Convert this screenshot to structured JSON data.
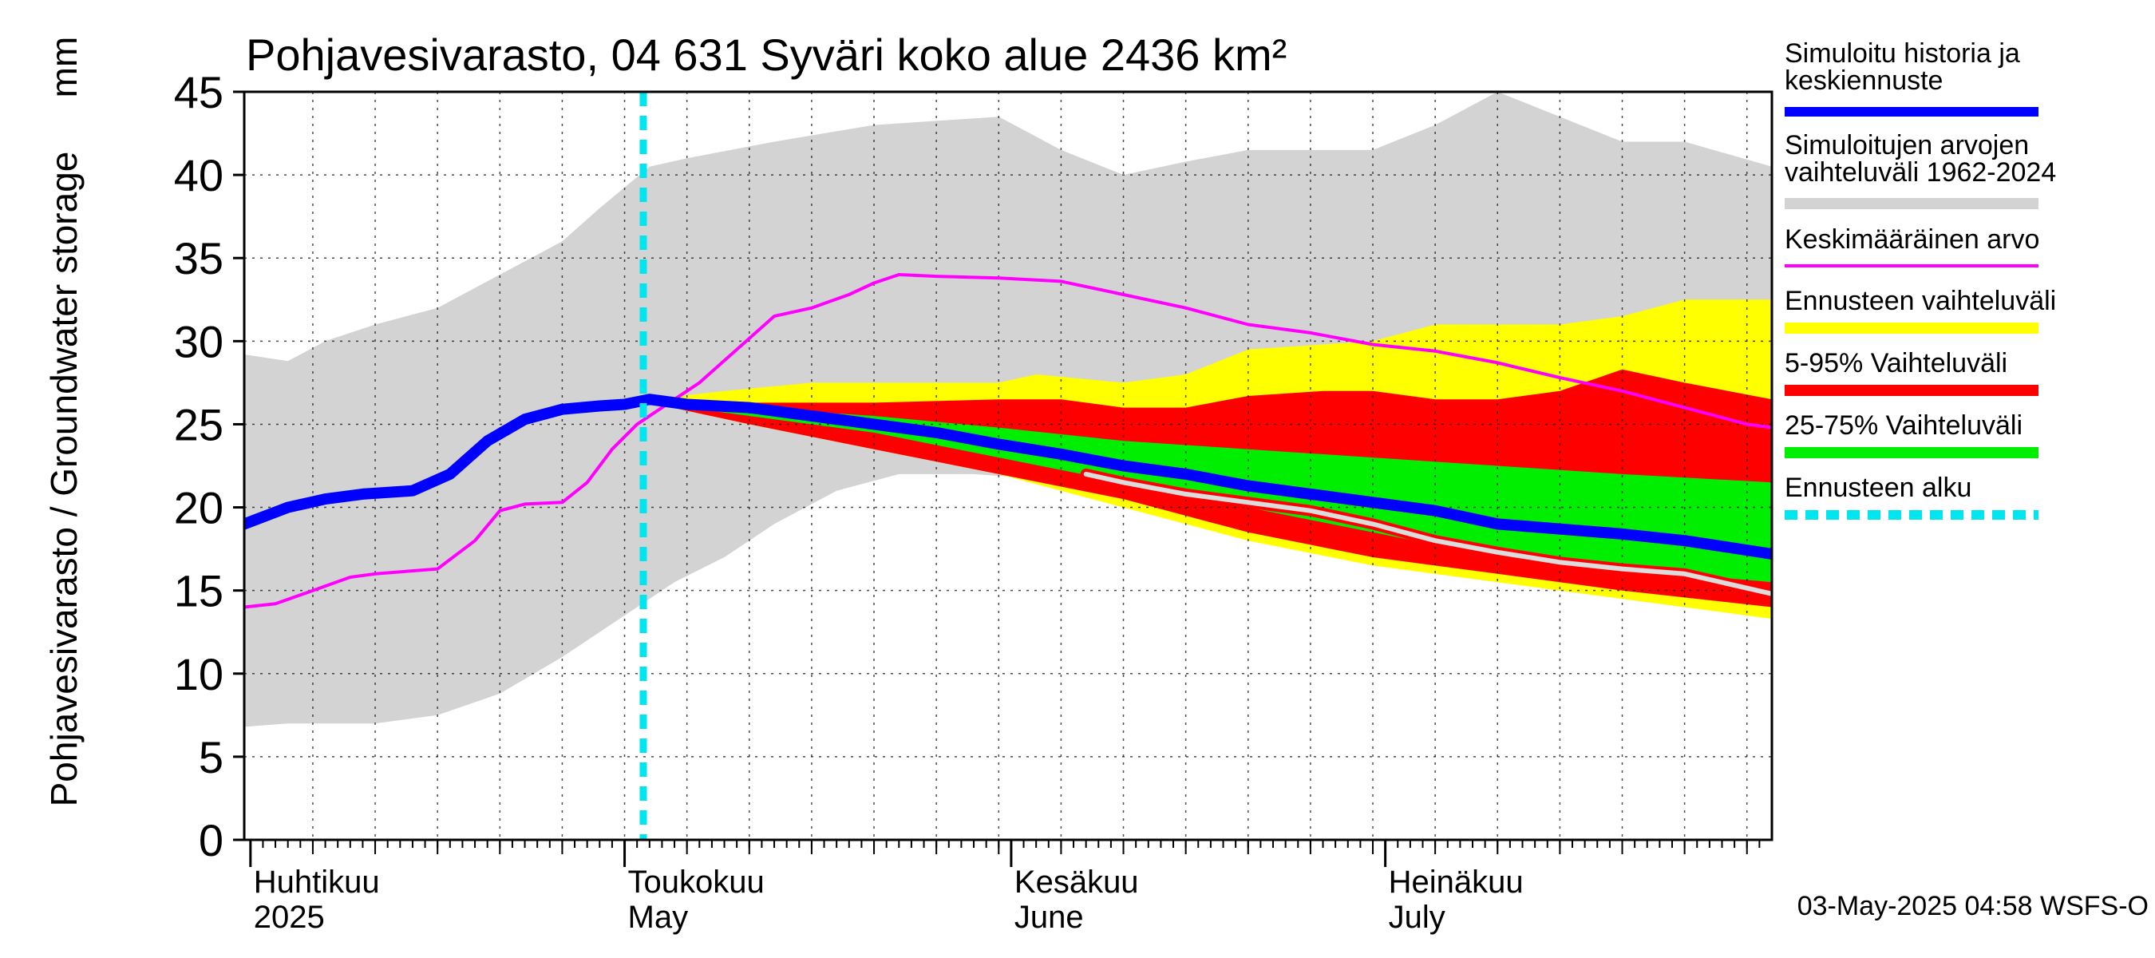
{
  "chart_data": {
    "type": "area",
    "title": "Pohjavesivarasto, 04 631 Syväri koko alue 2436 km²",
    "ylabel": "Pohjavesivarasto / Groundwater storage",
    "yunit": "mm",
    "ylim": [
      0,
      45
    ],
    "yticks": [
      0,
      5,
      10,
      15,
      20,
      25,
      30,
      35,
      40,
      45
    ],
    "xlim": [
      -0.5,
      122
    ],
    "grid": true,
    "month_labels": [
      {
        "x": 0,
        "line1": "Huhtikuu",
        "line2": "2025"
      },
      {
        "x": 30,
        "line1": "Toukokuu",
        "line2": "May"
      },
      {
        "x": 61,
        "line1": "Kesäkuu",
        "line2": "June"
      },
      {
        "x": 91,
        "line1": "Heinäkuu",
        "line2": "July"
      }
    ],
    "forecast_start_x": 31.5,
    "colors": {
      "history_range": "#d3d3d3",
      "forecast_range": "#ffff00",
      "p5_95": "#ff0000",
      "p25_75": "#00ee00",
      "median": "#0000ff",
      "mean": "#ff00ff",
      "forecast_start": "#00e5ee",
      "lowline": "#dcdcdc"
    },
    "series": [
      {
        "key": "hist_max",
        "values": [
          [
            -0.5,
            29.2
          ],
          [
            3,
            28.8
          ],
          [
            6,
            30
          ],
          [
            10,
            31
          ],
          [
            15,
            32
          ],
          [
            20,
            34
          ],
          [
            25,
            36
          ],
          [
            28,
            38
          ],
          [
            32,
            40.5
          ],
          [
            35,
            41
          ],
          [
            42,
            42
          ],
          [
            50,
            43
          ],
          [
            60,
            43.5
          ],
          [
            65,
            41.5
          ],
          [
            70,
            40
          ],
          [
            75,
            40.8
          ],
          [
            80,
            41.5
          ],
          [
            85,
            41.5
          ],
          [
            90,
            41.5
          ],
          [
            95,
            43
          ],
          [
            100,
            45
          ],
          [
            105,
            43.5
          ],
          [
            110,
            42
          ],
          [
            115,
            42
          ],
          [
            122,
            40.5
          ]
        ]
      },
      {
        "key": "hist_min",
        "values": [
          [
            -0.5,
            6.8
          ],
          [
            3,
            7
          ],
          [
            10,
            7
          ],
          [
            15,
            7.5
          ],
          [
            20,
            8.8
          ],
          [
            25,
            11
          ],
          [
            28,
            12.5
          ],
          [
            31,
            14
          ],
          [
            34,
            15.5
          ],
          [
            38,
            17
          ],
          [
            42,
            19
          ],
          [
            47,
            21
          ],
          [
            52,
            22
          ],
          [
            58,
            22
          ],
          [
            64,
            21.7
          ],
          [
            70,
            20
          ],
          [
            75,
            19.5
          ],
          [
            85,
            18
          ],
          [
            95,
            16
          ],
          [
            105,
            15
          ],
          [
            115,
            14
          ],
          [
            122,
            13.5
          ]
        ]
      },
      {
        "key": "fc_max",
        "values": [
          [
            32,
            26.5
          ],
          [
            38,
            27
          ],
          [
            45,
            27.5
          ],
          [
            55,
            27.5
          ],
          [
            60,
            27.5
          ],
          [
            63,
            28
          ],
          [
            70,
            27.5
          ],
          [
            75,
            28
          ],
          [
            80,
            29.5
          ],
          [
            90,
            30
          ],
          [
            95,
            31
          ],
          [
            100,
            31
          ],
          [
            105,
            31
          ],
          [
            110,
            31.5
          ],
          [
            115,
            32.5
          ],
          [
            122,
            32.5
          ]
        ]
      },
      {
        "key": "fc_min",
        "values": [
          [
            32,
            26.3
          ],
          [
            40,
            25
          ],
          [
            50,
            23.5
          ],
          [
            60,
            22
          ],
          [
            70,
            20
          ],
          [
            80,
            18
          ],
          [
            90,
            16.5
          ],
          [
            100,
            15.5
          ],
          [
            110,
            14.5
          ],
          [
            122,
            13.3
          ]
        ]
      },
      {
        "key": "p95",
        "values": [
          [
            32,
            26.5
          ],
          [
            40,
            26.3
          ],
          [
            50,
            26.3
          ],
          [
            60,
            26.5
          ],
          [
            65,
            26.5
          ],
          [
            70,
            26
          ],
          [
            75,
            26
          ],
          [
            80,
            26.7
          ],
          [
            86,
            27
          ],
          [
            90,
            27
          ],
          [
            95,
            26.5
          ],
          [
            100,
            26.5
          ],
          [
            105,
            27
          ],
          [
            110,
            28.3
          ],
          [
            115,
            27.5
          ],
          [
            122,
            26.5
          ]
        ]
      },
      {
        "key": "p5",
        "values": [
          [
            32,
            26.3
          ],
          [
            40,
            25
          ],
          [
            50,
            23.5
          ],
          [
            60,
            22
          ],
          [
            70,
            20.5
          ],
          [
            80,
            18.5
          ],
          [
            90,
            17
          ],
          [
            100,
            16
          ],
          [
            110,
            15
          ],
          [
            122,
            14
          ]
        ]
      },
      {
        "key": "p75",
        "values": [
          [
            32,
            26.5
          ],
          [
            40,
            26
          ],
          [
            50,
            25.5
          ],
          [
            60,
            24.8
          ],
          [
            70,
            24
          ],
          [
            80,
            23.5
          ],
          [
            90,
            23
          ],
          [
            100,
            22.5
          ],
          [
            110,
            22
          ],
          [
            122,
            21.5
          ]
        ]
      },
      {
        "key": "p25",
        "values": [
          [
            32,
            26.3
          ],
          [
            40,
            25.5
          ],
          [
            50,
            24.5
          ],
          [
            60,
            23
          ],
          [
            70,
            21.5
          ],
          [
            80,
            20
          ],
          [
            90,
            18.5
          ],
          [
            100,
            17
          ],
          [
            110,
            16.3
          ],
          [
            122,
            15.5
          ]
        ]
      },
      {
        "key": "lowline",
        "values": [
          [
            67,
            22
          ],
          [
            70,
            21.5
          ],
          [
            75,
            20.8
          ],
          [
            80,
            20.3
          ],
          [
            85,
            19.8
          ],
          [
            90,
            19
          ],
          [
            95,
            18
          ],
          [
            100,
            17.3
          ],
          [
            105,
            16.7
          ],
          [
            110,
            16.3
          ],
          [
            115,
            16
          ],
          [
            122,
            14.8
          ]
        ]
      },
      {
        "key": "mean",
        "name": "Keskimääräinen arvo",
        "values": [
          [
            -0.5,
            14
          ],
          [
            2,
            14.2
          ],
          [
            5,
            15
          ],
          [
            8,
            15.8
          ],
          [
            10,
            16
          ],
          [
            15,
            16.3
          ],
          [
            18,
            18
          ],
          [
            20,
            19.8
          ],
          [
            22,
            20.2
          ],
          [
            25,
            20.3
          ],
          [
            27,
            21.5
          ],
          [
            29,
            23.5
          ],
          [
            31,
            25
          ],
          [
            33,
            26
          ],
          [
            36,
            27.5
          ],
          [
            39,
            29.5
          ],
          [
            42,
            31.5
          ],
          [
            45,
            32
          ],
          [
            48,
            32.8
          ],
          [
            50,
            33.5
          ],
          [
            52,
            34
          ],
          [
            55,
            33.9
          ],
          [
            60,
            33.8
          ],
          [
            65,
            33.6
          ],
          [
            70,
            32.8
          ],
          [
            75,
            32
          ],
          [
            80,
            31
          ],
          [
            85,
            30.5
          ],
          [
            90,
            29.8
          ],
          [
            95,
            29.4
          ],
          [
            100,
            28.7
          ],
          [
            105,
            27.8
          ],
          [
            110,
            27
          ],
          [
            115,
            26
          ],
          [
            120,
            25
          ],
          [
            122,
            24.8
          ]
        ]
      },
      {
        "key": "median",
        "name": "Simuloitu historia ja keskiennuste",
        "values": [
          [
            -0.5,
            19
          ],
          [
            3,
            20
          ],
          [
            6,
            20.5
          ],
          [
            9,
            20.8
          ],
          [
            13,
            21
          ],
          [
            16,
            22
          ],
          [
            19,
            24
          ],
          [
            22,
            25.3
          ],
          [
            25,
            25.9
          ],
          [
            28,
            26.1
          ],
          [
            30,
            26.2
          ],
          [
            32,
            26.5
          ],
          [
            35,
            26.2
          ],
          [
            40,
            26
          ],
          [
            45,
            25.5
          ],
          [
            50,
            25
          ],
          [
            55,
            24.5
          ],
          [
            60,
            23.8
          ],
          [
            65,
            23.2
          ],
          [
            70,
            22.5
          ],
          [
            75,
            22
          ],
          [
            80,
            21.3
          ],
          [
            85,
            20.8
          ],
          [
            90,
            20.3
          ],
          [
            95,
            19.8
          ],
          [
            100,
            19
          ],
          [
            105,
            18.7
          ],
          [
            110,
            18.4
          ],
          [
            115,
            18
          ],
          [
            122,
            17.2
          ]
        ]
      }
    ],
    "legend_position": "right",
    "legend": [
      {
        "line1": "Simuloitu historia ja",
        "line2": "keskiennuste",
        "color": "#0000ff",
        "style": "thick"
      },
      {
        "line1": "Simuloitujen arvojen",
        "line2": "vaihteluväli 1962-2024",
        "color": "#d3d3d3",
        "style": "band"
      },
      {
        "line1": "Keskimääräinen arvo",
        "line2": "",
        "color": "#ff00ff",
        "style": "thin"
      },
      {
        "line1": "Ennusteen vaihteluväli",
        "line2": "",
        "color": "#ffff00",
        "style": "band"
      },
      {
        "line1": "5-95% Vaihteluväli",
        "line2": "",
        "color": "#ff0000",
        "style": "band"
      },
      {
        "line1": "25-75% Vaihteluväli",
        "line2": "",
        "color": "#00ee00",
        "style": "band"
      },
      {
        "line1": "Ennusteen alku",
        "line2": "",
        "color": "#00e5ee",
        "style": "dashed"
      }
    ],
    "footer": "03-May-2025 04:58 WSFS-O"
  }
}
